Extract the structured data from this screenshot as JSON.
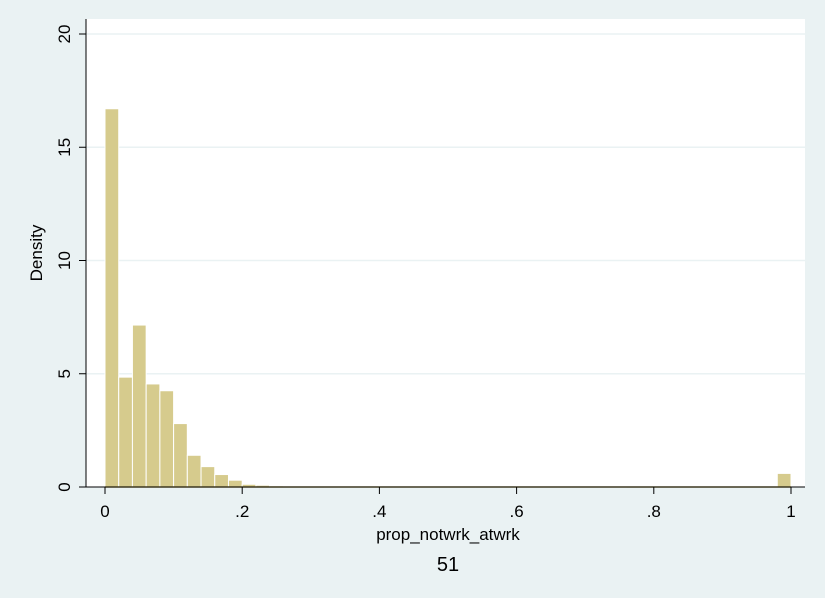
{
  "chart_data": {
    "type": "bar",
    "title": "",
    "xlabel": "prop_notwrk_atwrk",
    "ylabel": "Density",
    "note": "51",
    "xlim": [
      0,
      1
    ],
    "ylim": [
      0,
      20
    ],
    "x_ticks": [
      0,
      0.2,
      0.4,
      0.6,
      0.8,
      1
    ],
    "x_tick_labels": [
      "0",
      ".2",
      ".4",
      ".6",
      ".8",
      "1"
    ],
    "y_ticks": [
      0,
      5,
      10,
      15,
      20
    ],
    "y_tick_labels": [
      "0",
      "5",
      "10",
      "15",
      "20"
    ],
    "grid": true,
    "bin_width": 0.02,
    "bins": [
      {
        "x0": 0.0,
        "y": 16.7
      },
      {
        "x0": 0.02,
        "y": 4.85
      },
      {
        "x0": 0.04,
        "y": 7.15
      },
      {
        "x0": 0.06,
        "y": 4.55
      },
      {
        "x0": 0.08,
        "y": 4.25
      },
      {
        "x0": 0.1,
        "y": 2.8
      },
      {
        "x0": 0.12,
        "y": 1.4
      },
      {
        "x0": 0.14,
        "y": 0.9
      },
      {
        "x0": 0.16,
        "y": 0.55
      },
      {
        "x0": 0.18,
        "y": 0.3
      },
      {
        "x0": 0.2,
        "y": 0.12
      },
      {
        "x0": 0.22,
        "y": 0.08
      },
      {
        "x0": 0.24,
        "y": 0.05
      },
      {
        "x0": 0.26,
        "y": 0.04
      },
      {
        "x0": 0.28,
        "y": 0.03
      },
      {
        "x0": 0.3,
        "y": 0.02
      },
      {
        "x0": 0.32,
        "y": 0.015
      },
      {
        "x0": 0.34,
        "y": 0.01
      },
      {
        "x0": 0.36,
        "y": 0.01
      },
      {
        "x0": 0.38,
        "y": 0.01
      },
      {
        "x0": 0.4,
        "y": 0.01
      },
      {
        "x0": 0.42,
        "y": 0.01
      },
      {
        "x0": 0.44,
        "y": 0.01
      },
      {
        "x0": 0.46,
        "y": 0.01
      },
      {
        "x0": 0.48,
        "y": 0.01
      },
      {
        "x0": 0.5,
        "y": 0.01
      },
      {
        "x0": 0.52,
        "y": 0.01
      },
      {
        "x0": 0.54,
        "y": 0.01
      },
      {
        "x0": 0.56,
        "y": 0.01
      },
      {
        "x0": 0.58,
        "y": 0.01
      },
      {
        "x0": 0.6,
        "y": 0.01
      },
      {
        "x0": 0.62,
        "y": 0.01
      },
      {
        "x0": 0.64,
        "y": 0.01
      },
      {
        "x0": 0.66,
        "y": 0.01
      },
      {
        "x0": 0.68,
        "y": 0.01
      },
      {
        "x0": 0.7,
        "y": 0.01
      },
      {
        "x0": 0.72,
        "y": 0.01
      },
      {
        "x0": 0.74,
        "y": 0.01
      },
      {
        "x0": 0.98,
        "y": 0.6
      }
    ],
    "colors": {
      "outer_background": "#eaf2f3",
      "plot_background": "#ffffff",
      "bar_fill": "#d6cb8d",
      "bar_stroke": "#ffffff",
      "baseline": "#b3a660",
      "grid": "#eaf2f3",
      "axis": "#000000"
    }
  }
}
